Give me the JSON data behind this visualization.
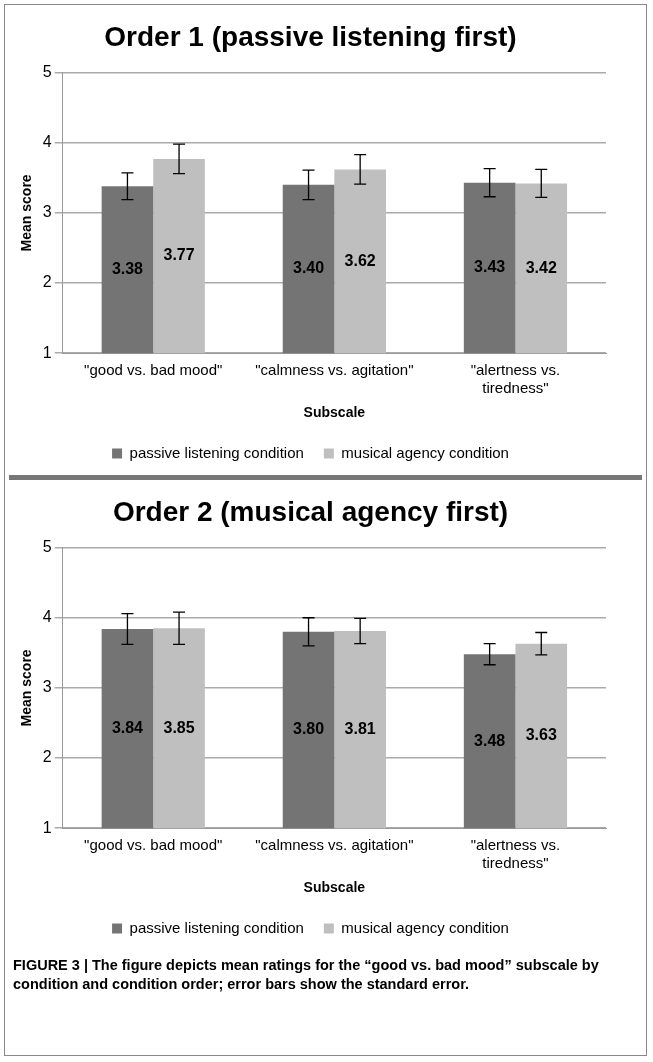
{
  "chart_data": [
    {
      "type": "bar",
      "title": "Order 1 (passive listening first)",
      "xlabel": "Subscale",
      "ylabel": "Mean score",
      "categories": [
        "\"good vs. bad mood\"",
        "\"calmness vs. agitation\"",
        "\"alertness vs. tiredness\""
      ],
      "series": [
        {
          "name": "passive listening condition",
          "color": "#747474",
          "values": [
            3.38,
            3.4,
            3.43
          ],
          "value_labels": [
            "3.38",
            "3.40",
            "3.43"
          ],
          "errors": [
            0.19,
            0.21,
            0.2
          ]
        },
        {
          "name": "musical agency condition",
          "color": "#bfbfbf",
          "values": [
            3.77,
            3.62,
            3.42
          ],
          "value_labels": [
            "3.77",
            "3.62",
            "3.42"
          ],
          "errors": [
            0.21,
            0.21,
            0.2
          ]
        }
      ],
      "ylim": [
        1,
        5
      ],
      "yticks": [
        1,
        2,
        3,
        4,
        5
      ],
      "grid": "y",
      "legend": "bottom"
    },
    {
      "type": "bar",
      "title": "Order 2 (musical agency first)",
      "xlabel": "Subscale",
      "ylabel": "Mean score",
      "categories": [
        "\"good vs. bad mood\"",
        "\"calmness vs. agitation\"",
        "\"alertness vs. tiredness\""
      ],
      "series": [
        {
          "name": "passive listening condition",
          "color": "#747474",
          "values": [
            3.84,
            3.8,
            3.48
          ],
          "value_labels": [
            "3.84",
            "3.80",
            "3.48"
          ],
          "errors": [
            0.22,
            0.2,
            0.15
          ]
        },
        {
          "name": "musical agency condition",
          "color": "#bfbfbf",
          "values": [
            3.85,
            3.81,
            3.63
          ],
          "value_labels": [
            "3.85",
            "3.81",
            "3.63"
          ],
          "errors": [
            0.23,
            0.18,
            0.16
          ]
        }
      ],
      "ylim": [
        1,
        5
      ],
      "yticks": [
        1,
        2,
        3,
        4,
        5
      ],
      "grid": "y",
      "legend": "bottom",
      "annotations": [
        "FIGURE 3 | The figure depicts mean ratings for the “good vs. bad mood” subscale by condition and condition order; error bars show the standard error."
      ]
    }
  ]
}
